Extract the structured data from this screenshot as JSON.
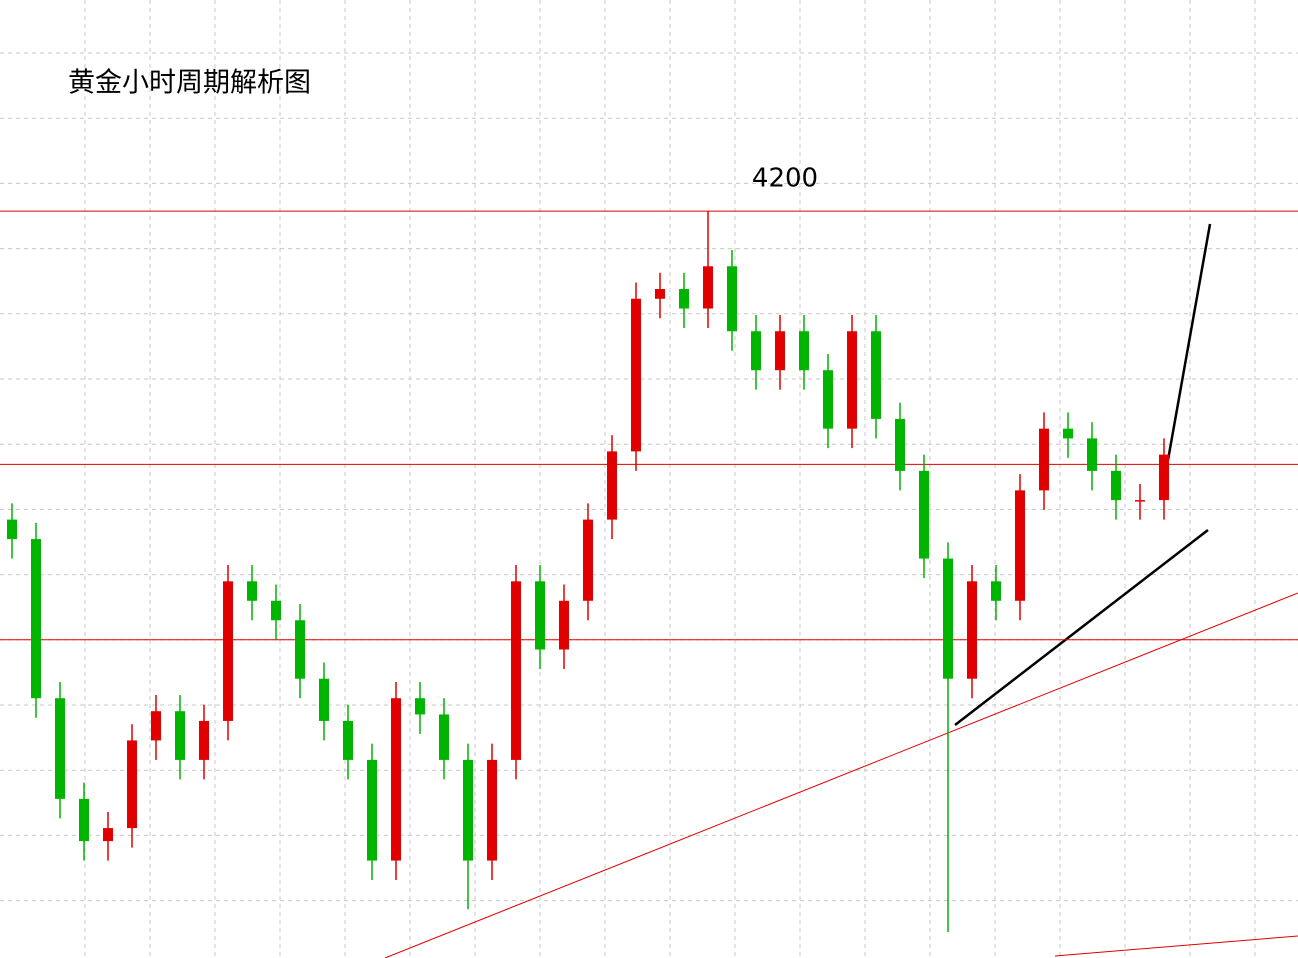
{
  "chart_data": {
    "type": "candlestick",
    "title": "黄金小时周期解析图",
    "open": [
      4105,
      4099,
      4050,
      4019,
      4006,
      4010,
      4037,
      4046,
      4031,
      4043,
      4086,
      4080,
      4074,
      4056,
      4043,
      4031,
      4000,
      4050,
      4045,
      4031,
      4000,
      4031,
      4086,
      4065,
      4080,
      4105,
      4126,
      4173,
      4176,
      4170,
      4183,
      4163,
      4151,
      4163,
      4151,
      4133,
      4163,
      4136,
      4120,
      4093,
      4056,
      4086,
      4080,
      4114,
      4133,
      4130,
      4120,
      4111,
      4111
    ],
    "high": [
      4110,
      4104,
      4055,
      4024,
      4015,
      4042,
      4051,
      4051,
      4048,
      4091,
      4091,
      4085,
      4079,
      4061,
      4048,
      4036,
      4055,
      4055,
      4050,
      4036,
      4036,
      4091,
      4091,
      4085,
      4110,
      4131,
      4178,
      4181,
      4181,
      4200,
      4188,
      4168,
      4168,
      4168,
      4156,
      4168,
      4168,
      4141,
      4125,
      4098,
      4091,
      4091,
      4119,
      4138,
      4138,
      4135,
      4125,
      4116,
      4130
    ],
    "low": [
      4093,
      4044,
      4013,
      4000,
      4000,
      4004,
      4031,
      4025,
      4025,
      4037,
      4074,
      4068,
      4050,
      4037,
      4025,
      3994,
      3994,
      4039,
      4025,
      3985,
      3994,
      4025,
      4059,
      4059,
      4074,
      4099,
      4120,
      4167,
      4164,
      4164,
      4157,
      4145,
      4145,
      4145,
      4127,
      4127,
      4130,
      4114,
      4087,
      3978,
      4050,
      4074,
      4074,
      4108,
      4124,
      4114,
      4105,
      4105,
      4105
    ],
    "close": [
      4099,
      4050,
      4019,
      4006,
      4010,
      4037,
      4046,
      4031,
      4043,
      4086,
      4080,
      4074,
      4056,
      4043,
      4031,
      4000,
      4050,
      4045,
      4031,
      4000,
      4031,
      4086,
      4065,
      4080,
      4105,
      4126,
      4173,
      4176,
      4170,
      4183,
      4163,
      4151,
      4163,
      4151,
      4133,
      4163,
      4136,
      4120,
      4093,
      4056,
      4086,
      4080,
      4114,
      4133,
      4130,
      4120,
      4111,
      4111,
      4125
    ],
    "up_color": "#e00000",
    "down_color": "#00b400",
    "levels": [
      4200,
      4122,
      4068
    ],
    "level_color": "#e00000",
    "ylim": [
      3970,
      4265
    ],
    "grid": true
  }
}
